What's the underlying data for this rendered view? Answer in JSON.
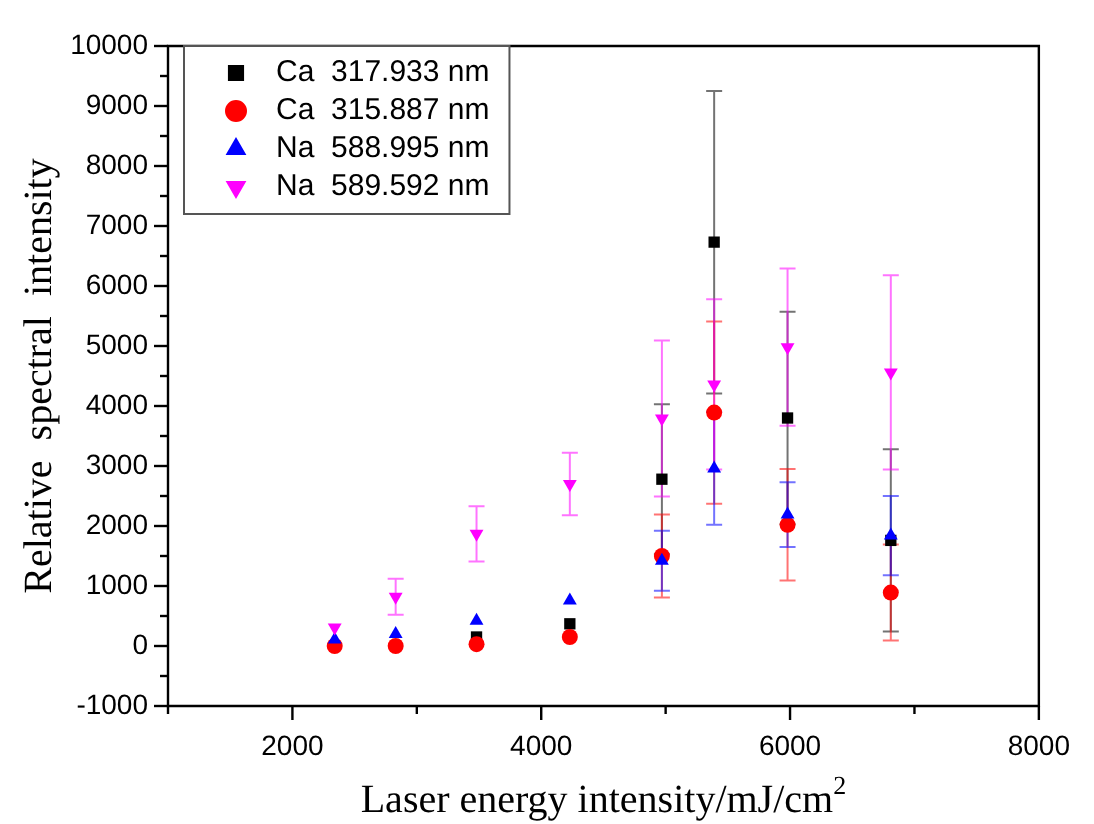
{
  "chart_data": {
    "type": "scatter",
    "xlabel": "Laser energy intensity/mJ/cm$^{2}$",
    "ylabel": "Relative  spectral  intensity",
    "x": [
      2340,
      2830,
      3480,
      4230,
      4970,
      5390,
      5980,
      6810
    ],
    "series": [
      {
        "name": "Ca  317.933 nm",
        "color": "#000000",
        "marker": "square",
        "values": [
          null,
          null,
          150,
          370,
          2780,
          6730,
          3800,
          1760
        ],
        "errors": [
          null,
          null,
          null,
          null,
          1250,
          2520,
          1770,
          1520
        ]
      },
      {
        "name": "Ca  315.887 nm",
        "color": "#ff0000",
        "marker": "circle",
        "values": [
          0,
          0,
          30,
          150,
          1500,
          3890,
          2020,
          890
        ],
        "errors": [
          null,
          null,
          null,
          null,
          690,
          1520,
          930,
          800
        ]
      },
      {
        "name": "Na  588.995 nm",
        "color": "#0000ff",
        "marker": "triangle",
        "values": [
          110,
          200,
          420,
          760,
          1420,
          2960,
          2190,
          1840
        ],
        "errors": [
          null,
          null,
          null,
          null,
          500,
          940,
          540,
          660
        ]
      },
      {
        "name": "Na  589.592 nm",
        "color": "#ff00ff",
        "values": [
          310,
          820,
          1870,
          2700,
          3790,
          4360,
          4980,
          4560
        ],
        "errors": [
          null,
          300,
          460,
          520,
          1300,
          1420,
          1310,
          1620
        ]
      }
    ],
    "xlim": [
      1000,
      8000
    ],
    "xticks": [
      {
        "value": 1000,
        "label": null
      },
      2000,
      {
        "value": 3000,
        "label": null
      },
      4000,
      {
        "value": 5000,
        "label": null
      },
      6000,
      {
        "value": 7000,
        "label": null
      },
      8000
    ],
    "ylim": [
      -1000,
      10000
    ],
    "yticks": [
      -1000,
      {
        "value": -500,
        "label": null
      },
      0,
      {
        "value": 500,
        "label": null
      },
      1000,
      {
        "value": 1500,
        "label": null
      },
      2000,
      {
        "value": 2500,
        "label": null
      },
      3000,
      {
        "value": 3500,
        "label": null
      },
      4000,
      {
        "value": 4500,
        "label": null
      },
      5000,
      {
        "value": 5500,
        "label": null
      },
      6000,
      {
        "value": 6500,
        "label": null
      },
      7000,
      {
        "value": 7500,
        "label": null
      },
      8000,
      {
        "value": 8500,
        "label": null
      },
      9000,
      {
        "value": 9500,
        "label": null
      },
      10000
    ],
    "grid": false,
    "legend": "top left"
  }
}
